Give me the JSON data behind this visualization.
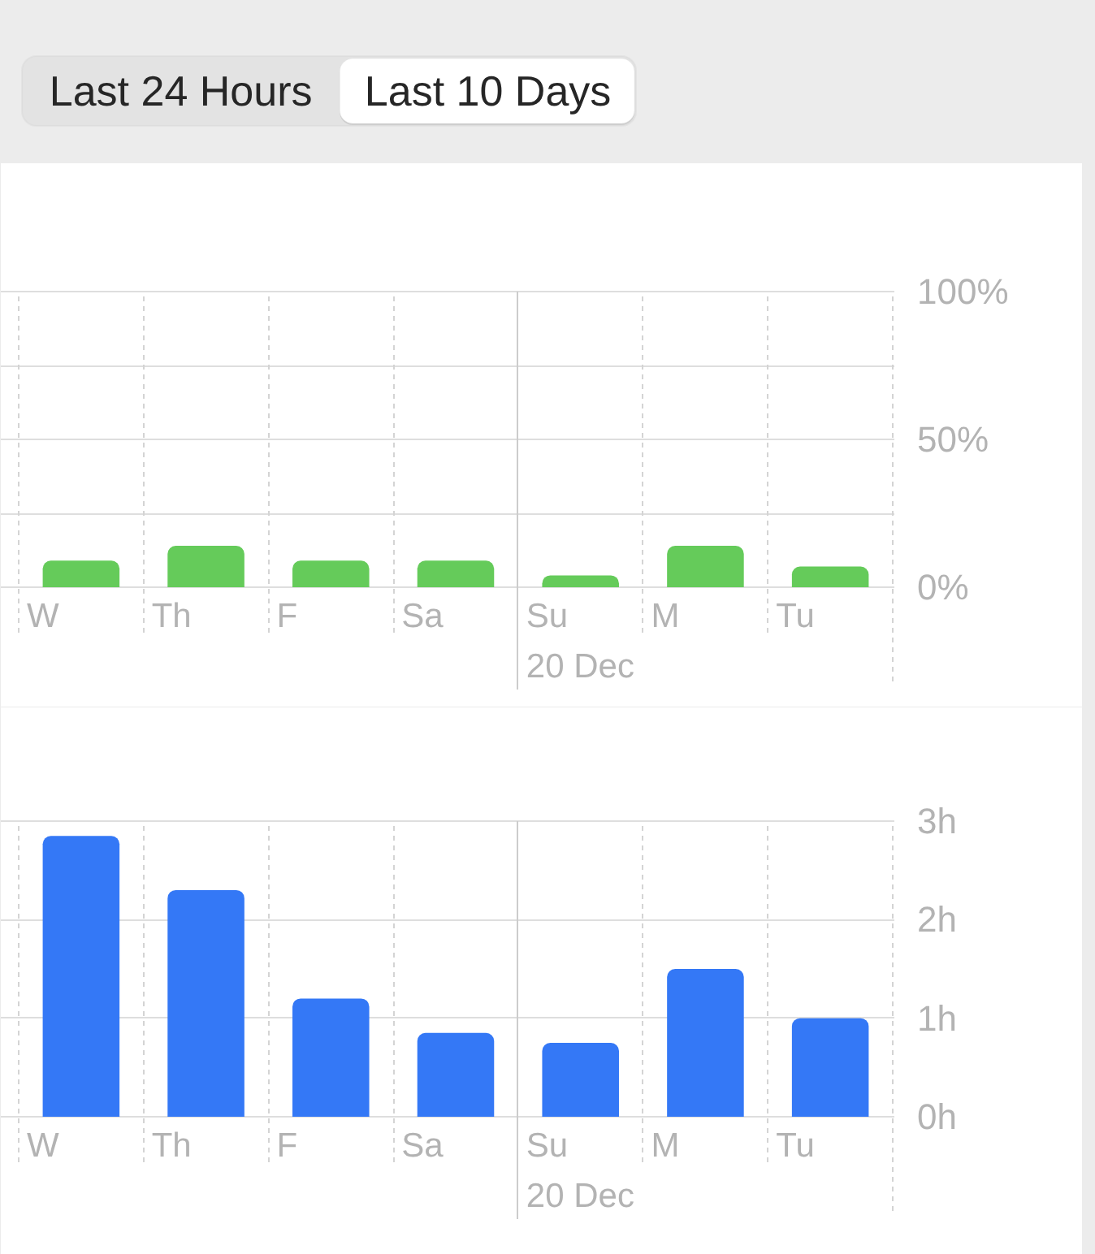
{
  "chart_data": [
    {
      "type": "other",
      "annotations": [
        "Last 24 Hours",
        "Last 10 Days"
      ]
    },
    {
      "type": "bar",
      "categories": [
        "W",
        "Th",
        "F",
        "Sa",
        "Su",
        "M",
        "Tu"
      ],
      "values": [
        9,
        14,
        9,
        9,
        4,
        14,
        7
      ],
      "color": "#65cb5a",
      "ylim": [
        0,
        100
      ],
      "yticks": [
        {
          "value": 0,
          "label": "0%"
        },
        {
          "value": 25,
          "label": null
        },
        {
          "value": 50,
          "label": "50%"
        },
        {
          "value": 75,
          "label": null
        },
        {
          "value": 100,
          "label": "100%"
        }
      ],
      "grid": true,
      "ref_lines": [
        {
          "axis": "x",
          "value": "Su",
          "label": "20 Dec",
          "color": "#cccccc"
        }
      ]
    },
    {
      "type": "bar",
      "categories": [
        "W",
        "Th",
        "F",
        "Sa",
        "Su",
        "M",
        "Tu"
      ],
      "values": [
        2.85,
        2.3,
        1.2,
        0.85,
        0.75,
        1.5,
        1.0
      ],
      "color": "#3478f6",
      "ylim": [
        0,
        3
      ],
      "yticks": [
        {
          "value": 0,
          "label": "0h"
        },
        {
          "value": 1,
          "label": "1h"
        },
        {
          "value": 2,
          "label": "2h"
        },
        {
          "value": 3,
          "label": "3h"
        }
      ],
      "grid": true,
      "ref_lines": [
        {
          "axis": "x",
          "value": "Su",
          "label": "20 Dec",
          "color": "#cccccc"
        }
      ]
    }
  ]
}
